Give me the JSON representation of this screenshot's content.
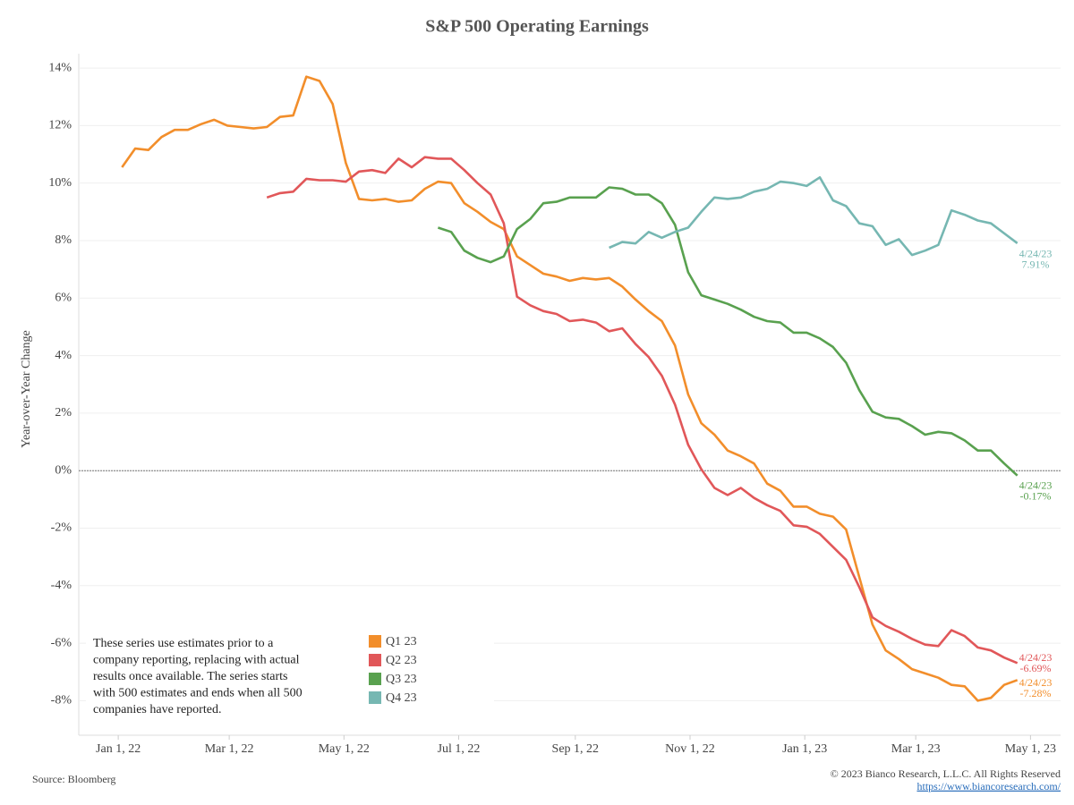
{
  "chart_data": {
    "type": "line",
    "title": "S&P 500 Operating Earnings",
    "y_label": "Year-over-Year Change",
    "note_lines": [
      "These series use estimates prior to a",
      "company reporting, replacing with actual",
      "results once available. The series starts",
      "with 500 estimates and ends when all 500",
      "companies have reported."
    ],
    "source": "Source: Bloomberg",
    "copyright": "© 2023 Bianco Research, L.L.C. All Rights Reserved",
    "url": "https://www.biancoresearch.com/",
    "zero_line": true,
    "grid": true,
    "legend": "bottom-left",
    "xlim": [
      "2021-12-11",
      "2023-05-17"
    ],
    "xticks": [
      {
        "value": "2022-01-01",
        "label": "Jan 1, 22"
      },
      {
        "value": "2022-03-01",
        "label": "Mar 1, 22"
      },
      {
        "value": "2022-05-01",
        "label": "May 1, 22"
      },
      {
        "value": "2022-07-01",
        "label": "Jul 1, 22"
      },
      {
        "value": "2022-09-01",
        "label": "Sep 1, 22"
      },
      {
        "value": "2022-11-01",
        "label": "Nov 1, 22"
      },
      {
        "value": "2023-01-01",
        "label": "Jan 1, 23"
      },
      {
        "value": "2023-03-01",
        "label": "Mar 1, 23"
      },
      {
        "value": "2023-05-01",
        "label": "May 1, 23"
      }
    ],
    "ylim": [
      -9.2,
      14.5
    ],
    "yticks": [
      {
        "value": -8,
        "label": "-8%"
      },
      {
        "value": -6,
        "label": "-6%"
      },
      {
        "value": -4,
        "label": "-4%"
      },
      {
        "value": -2,
        "label": "-2%"
      },
      {
        "value": 0,
        "label": "0%"
      },
      {
        "value": 2,
        "label": "2%"
      },
      {
        "value": 4,
        "label": "4%"
      },
      {
        "value": 6,
        "label": "6%"
      },
      {
        "value": 8,
        "label": "8%"
      },
      {
        "value": 10,
        "label": "10%"
      },
      {
        "value": 12,
        "label": "12%"
      },
      {
        "value": 14,
        "label": "14%"
      }
    ],
    "x": [
      "2022-01-03",
      "2022-01-10",
      "2022-01-17",
      "2022-01-24",
      "2022-01-31",
      "2022-02-07",
      "2022-02-14",
      "2022-02-21",
      "2022-02-28",
      "2022-03-07",
      "2022-03-14",
      "2022-03-21",
      "2022-03-28",
      "2022-04-04",
      "2022-04-11",
      "2022-04-18",
      "2022-04-25",
      "2022-05-02",
      "2022-05-09",
      "2022-05-16",
      "2022-05-23",
      "2022-05-30",
      "2022-06-06",
      "2022-06-13",
      "2022-06-20",
      "2022-06-27",
      "2022-07-04",
      "2022-07-11",
      "2022-07-18",
      "2022-07-25",
      "2022-08-01",
      "2022-08-08",
      "2022-08-15",
      "2022-08-22",
      "2022-08-29",
      "2022-09-05",
      "2022-09-12",
      "2022-09-19",
      "2022-09-26",
      "2022-10-03",
      "2022-10-10",
      "2022-10-17",
      "2022-10-24",
      "2022-10-31",
      "2022-11-07",
      "2022-11-14",
      "2022-11-21",
      "2022-11-28",
      "2022-12-05",
      "2022-12-12",
      "2022-12-19",
      "2022-12-26",
      "2023-01-02",
      "2023-01-09",
      "2023-01-16",
      "2023-01-23",
      "2023-01-30",
      "2023-02-06",
      "2023-02-13",
      "2023-02-20",
      "2023-02-27",
      "2023-03-06",
      "2023-03-13",
      "2023-03-20",
      "2023-03-27",
      "2023-04-03",
      "2023-04-10",
      "2023-04-17",
      "2023-04-24"
    ],
    "series": [
      {
        "name": "Q1 23",
        "color": "#f28e2b",
        "end_label_date": "4/24/23",
        "end_label_value": "-7.28%",
        "values": [
          10.55,
          11.2,
          11.15,
          11.6,
          11.85,
          11.85,
          12.05,
          12.2,
          12.0,
          11.95,
          11.9,
          11.95,
          12.3,
          12.35,
          13.7,
          13.55,
          12.75,
          10.7,
          9.45,
          9.4,
          9.45,
          9.35,
          9.4,
          9.8,
          10.05,
          10.0,
          9.3,
          9.0,
          8.65,
          8.4,
          7.45,
          7.15,
          6.85,
          6.75,
          6.6,
          6.7,
          6.65,
          6.7,
          6.4,
          5.95,
          5.55,
          5.2,
          4.35,
          2.65,
          1.65,
          1.25,
          0.7,
          0.5,
          0.25,
          -0.45,
          -0.7,
          -1.25,
          -1.25,
          -1.5,
          -1.6,
          -2.05,
          -3.7,
          -5.35,
          -6.25,
          -6.55,
          -6.9,
          -7.05,
          -7.2,
          -7.45,
          -7.5,
          -8.0,
          -7.9,
          -7.45,
          -7.28
        ]
      },
      {
        "name": "Q2 23",
        "color": "#e15759",
        "end_label_date": "4/24/23",
        "end_label_value": "-6.69%",
        "values": [
          null,
          null,
          null,
          null,
          null,
          null,
          null,
          null,
          null,
          null,
          null,
          9.5,
          9.65,
          9.7,
          10.15,
          10.1,
          10.1,
          10.05,
          10.4,
          10.45,
          10.35,
          10.85,
          10.55,
          10.9,
          10.85,
          10.85,
          10.45,
          10.0,
          9.6,
          8.6,
          6.05,
          5.75,
          5.55,
          5.45,
          5.2,
          5.25,
          5.15,
          4.85,
          4.95,
          4.4,
          3.95,
          3.3,
          2.3,
          0.9,
          0.05,
          -0.6,
          -0.85,
          -0.6,
          -0.95,
          -1.2,
          -1.4,
          -1.9,
          -1.95,
          -2.2,
          -2.65,
          -3.1,
          -4.05,
          -5.1,
          -5.4,
          -5.6,
          -5.85,
          -6.05,
          -6.1,
          -5.55,
          -5.75,
          -6.15,
          -6.25,
          -6.5,
          -6.69
        ]
      },
      {
        "name": "Q3 23",
        "color": "#59a14f",
        "end_label_date": "4/24/23",
        "end_label_value": "-0.17%",
        "values": [
          null,
          null,
          null,
          null,
          null,
          null,
          null,
          null,
          null,
          null,
          null,
          null,
          null,
          null,
          null,
          null,
          null,
          null,
          null,
          null,
          null,
          null,
          null,
          null,
          8.45,
          8.3,
          7.65,
          7.4,
          7.25,
          7.45,
          8.4,
          8.75,
          9.3,
          9.35,
          9.5,
          9.5,
          9.5,
          9.85,
          9.8,
          9.6,
          9.6,
          9.3,
          8.55,
          6.9,
          6.1,
          5.95,
          5.8,
          5.6,
          5.35,
          5.2,
          5.15,
          4.8,
          4.8,
          4.6,
          4.3,
          3.75,
          2.8,
          2.05,
          1.85,
          1.8,
          1.55,
          1.25,
          1.35,
          1.3,
          1.05,
          0.7,
          0.7,
          0.25,
          -0.17
        ]
      },
      {
        "name": "Q4 23",
        "color": "#76b7b2",
        "end_label_date": "4/24/23",
        "end_label_value": "7.91%",
        "values": [
          null,
          null,
          null,
          null,
          null,
          null,
          null,
          null,
          null,
          null,
          null,
          null,
          null,
          null,
          null,
          null,
          null,
          null,
          null,
          null,
          null,
          null,
          null,
          null,
          null,
          null,
          null,
          null,
          null,
          null,
          null,
          null,
          null,
          null,
          null,
          null,
          null,
          7.75,
          7.95,
          7.9,
          8.3,
          8.1,
          8.3,
          8.45,
          9.0,
          9.5,
          9.45,
          9.5,
          9.7,
          9.8,
          10.05,
          10.0,
          9.9,
          10.2,
          9.4,
          9.2,
          8.6,
          8.5,
          7.85,
          8.05,
          7.5,
          7.65,
          7.85,
          9.05,
          8.9,
          8.7,
          8.6,
          8.25,
          7.91
        ]
      }
    ]
  }
}
